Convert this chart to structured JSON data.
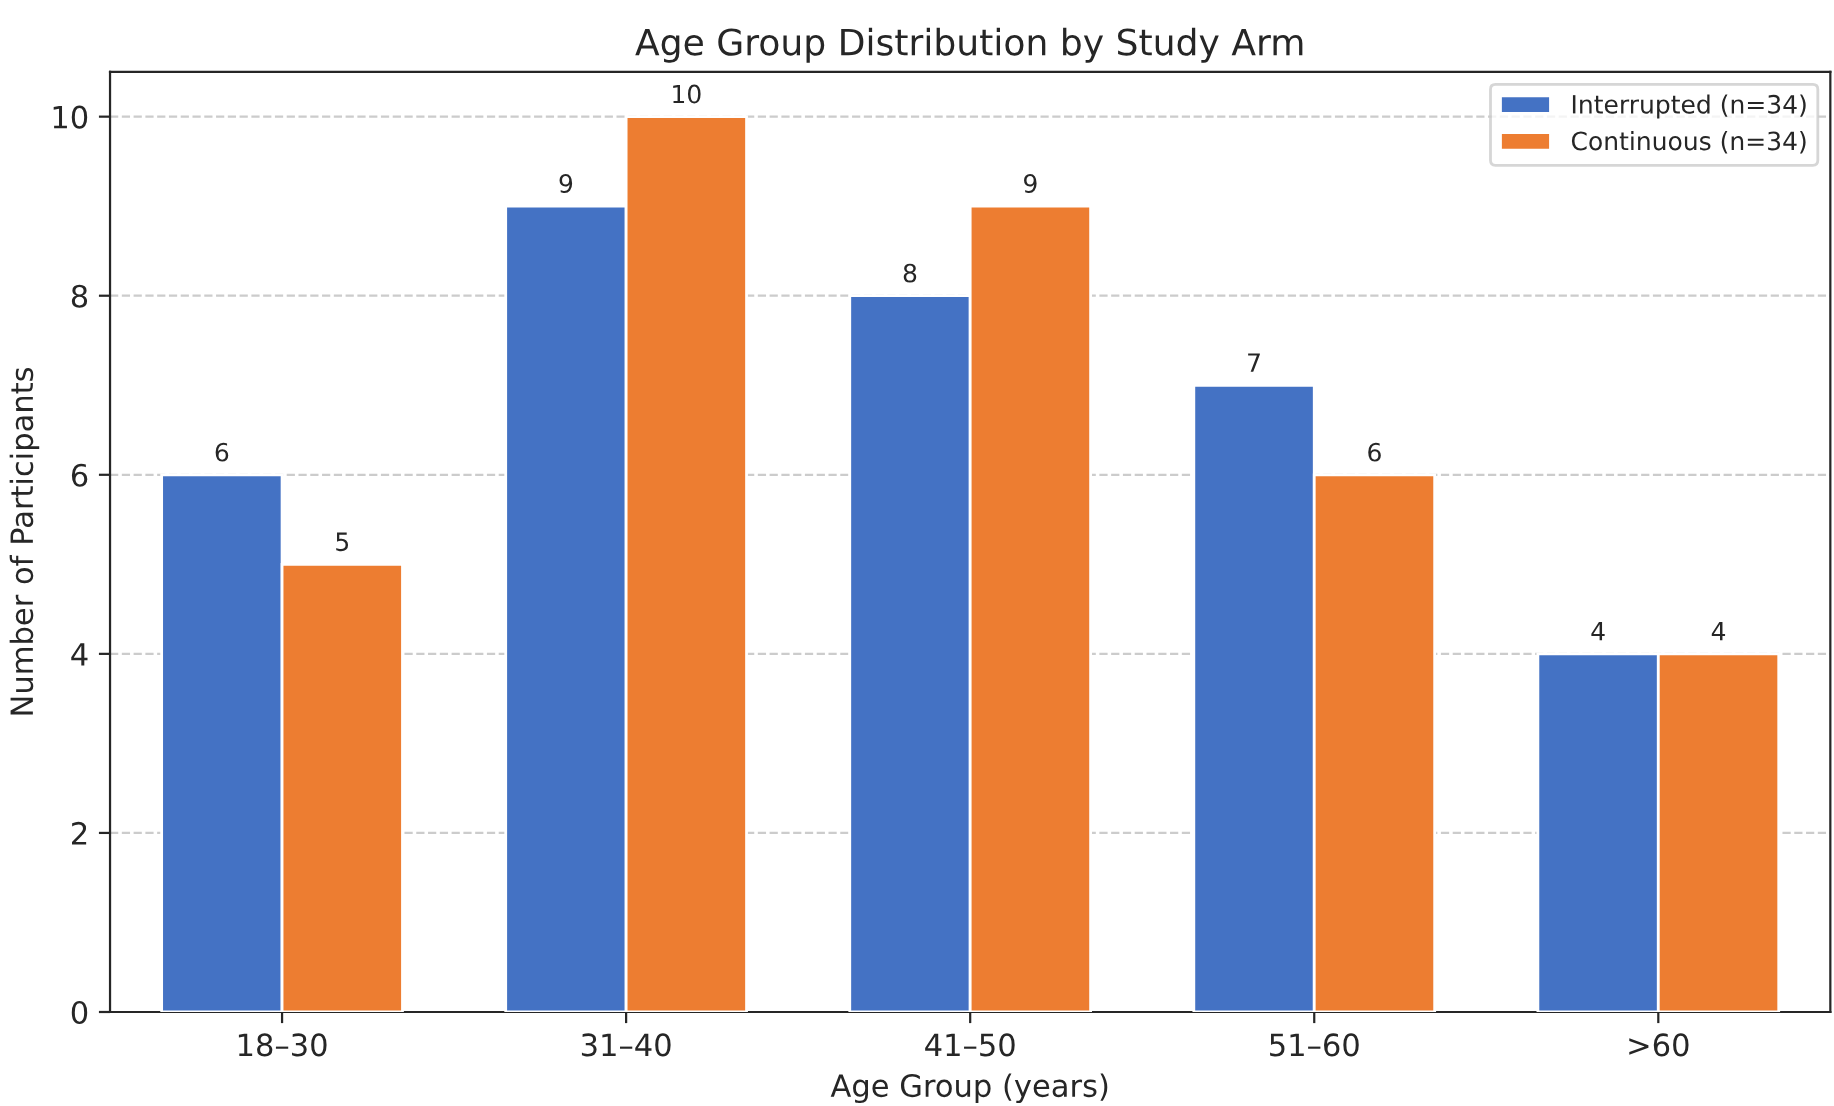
{
  "chart_data": {
    "type": "bar",
    "title": "Age Group Distribution by Study Arm",
    "xlabel": "Age Group (years)",
    "ylabel": "Number of Participants",
    "categories": [
      "18–30",
      "31–40",
      "41–50",
      "51–60",
      ">60"
    ],
    "series": [
      {
        "name": "Interrupted (n=34)",
        "color": "#4472c4",
        "values": [
          6,
          9,
          8,
          7,
          4
        ]
      },
      {
        "name": "Continuous (n=34)",
        "color": "#ed7d31",
        "values": [
          5,
          10,
          9,
          6,
          4
        ]
      }
    ],
    "ylim": [
      0,
      10.5
    ],
    "yticks": [
      0,
      2,
      4,
      6,
      8,
      10
    ],
    "grid": "y",
    "legend": "top right",
    "data_labels": true
  }
}
